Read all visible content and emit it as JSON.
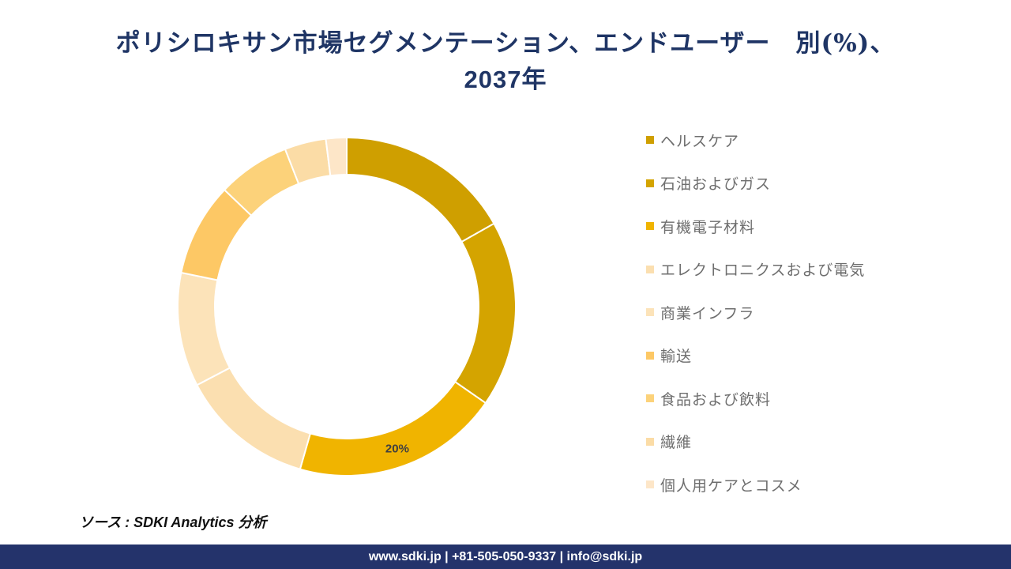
{
  "title": {
    "line1": "ポリシロキサン市場セグメンテーション、エンドユーザー　別(%)、",
    "line2": "2037年"
  },
  "chart_data": {
    "type": "donut",
    "title": "ポリシロキサン市場セグメンテーション、エンドユーザー　別(%)、2037年",
    "legend_position": "right",
    "series": [
      {
        "name": "ヘルスケア",
        "value": 17,
        "color": "#cf9f00",
        "show_label": false
      },
      {
        "name": "石油およびガス",
        "value": 18,
        "color": "#d4a400",
        "show_label": false
      },
      {
        "name": "有機電子材料",
        "value": 20,
        "color": "#f0b400",
        "show_label": true,
        "label": "20%"
      },
      {
        "name": "エレクトロニクスおよび電気",
        "value": 13,
        "color": "#fbdfb0",
        "show_label": false
      },
      {
        "name": "商業インフラ",
        "value": 11,
        "color": "#fce3b9",
        "show_label": false
      },
      {
        "name": "輸送",
        "value": 9,
        "color": "#fdc865",
        "show_label": false
      },
      {
        "name": "食品および飲料",
        "value": 7,
        "color": "#fcd27a",
        "show_label": false
      },
      {
        "name": "繊維",
        "value": 4,
        "color": "#fbdca6",
        "show_label": false
      },
      {
        "name": "個人用ケアとコスメ",
        "value": 2,
        "color": "#fde6c8",
        "show_label": false
      }
    ]
  },
  "source": "ソース : SDKI Analytics 分析",
  "footer": "www.sdki.jp | +81-505-050-9337 | info@sdki.jp"
}
